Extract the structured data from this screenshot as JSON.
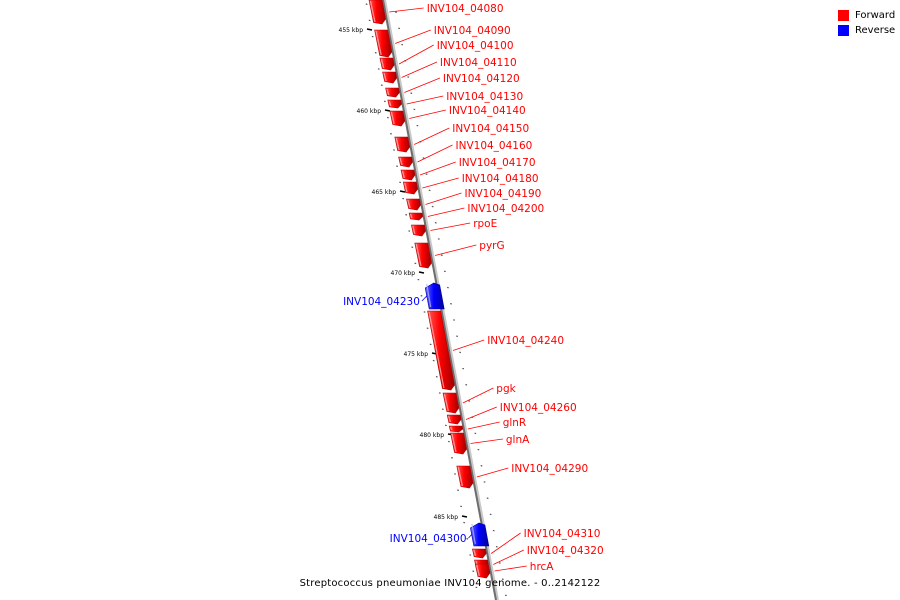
{
  "legend": {
    "forward": {
      "label": "Forward",
      "color": "#ff0000"
    },
    "reverse": {
      "label": "Reverse",
      "color": "#0000ff"
    }
  },
  "ticks": [
    {
      "label": "455 kbp",
      "kbp": 455
    },
    {
      "label": "460 kbp",
      "kbp": 460
    },
    {
      "label": "465 kbp",
      "kbp": 465
    },
    {
      "label": "470 kbp",
      "kbp": 470
    },
    {
      "label": "475 kbp",
      "kbp": 475
    },
    {
      "label": "480 kbp",
      "kbp": 480
    },
    {
      "label": "485 kbp",
      "kbp": 485
    }
  ],
  "genes": [
    {
      "label": "INV104_04080",
      "strand": "forward"
    },
    {
      "label": "INV104_04090",
      "strand": "forward"
    },
    {
      "label": "INV104_04100",
      "strand": "forward"
    },
    {
      "label": "INV104_04110",
      "strand": "forward"
    },
    {
      "label": "INV104_04120",
      "strand": "forward"
    },
    {
      "label": "INV104_04130",
      "strand": "forward"
    },
    {
      "label": "INV104_04140",
      "strand": "forward"
    },
    {
      "label": "INV104_04150",
      "strand": "forward"
    },
    {
      "label": "INV104_04160",
      "strand": "forward"
    },
    {
      "label": "INV104_04170",
      "strand": "forward"
    },
    {
      "label": "INV104_04180",
      "strand": "forward"
    },
    {
      "label": "INV104_04190",
      "strand": "forward"
    },
    {
      "label": "INV104_04200",
      "strand": "forward"
    },
    {
      "label": "rpoE",
      "strand": "forward"
    },
    {
      "label": "pyrG",
      "strand": "forward"
    },
    {
      "label": "INV104_04230",
      "strand": "reverse"
    },
    {
      "label": "INV104_04240",
      "strand": "forward"
    },
    {
      "label": "pgk",
      "strand": "forward"
    },
    {
      "label": "INV104_04260",
      "strand": "forward"
    },
    {
      "label": "glnR",
      "strand": "forward"
    },
    {
      "label": "glnA",
      "strand": "forward"
    },
    {
      "label": "INV104_04290",
      "strand": "forward"
    },
    {
      "label": "INV104_04300",
      "strand": "reverse"
    },
    {
      "label": "INV104_04310",
      "strand": "forward"
    },
    {
      "label": "INV104_04320",
      "strand": "forward"
    },
    {
      "label": "hrcA",
      "strand": "forward"
    }
  ],
  "caption": "Streptococcus pneumoniae INV104 genome. - 0..2142122"
}
